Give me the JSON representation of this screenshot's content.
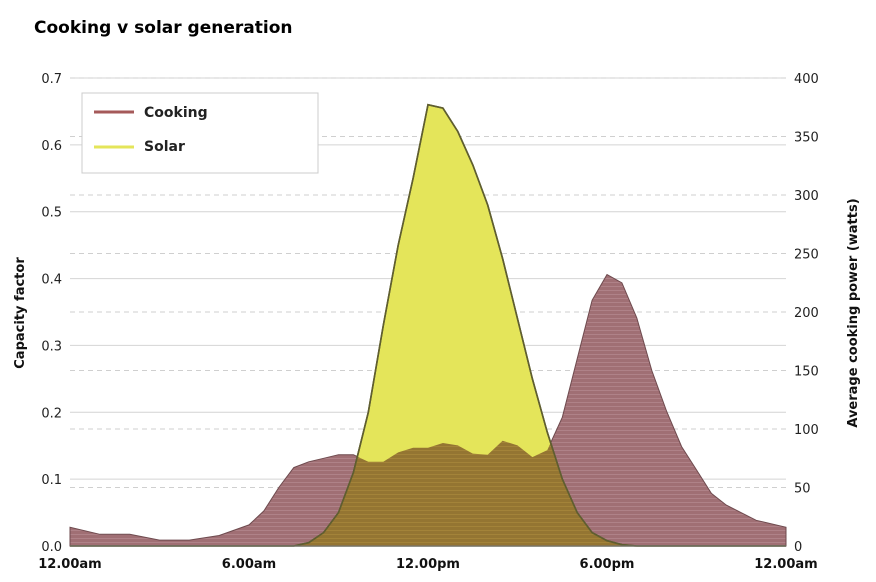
{
  "chart_data": {
    "type": "area",
    "title": "Cooking v solar generation",
    "x_tick_labels": [
      "12.00am",
      "6.00am",
      "12.00pm",
      "6.00pm",
      "12.00am"
    ],
    "x_hours": [
      0,
      6,
      12,
      18,
      24
    ],
    "y_left": {
      "label": "Capacity factor",
      "lim": [
        0,
        0.7
      ],
      "ticks": [
        "0.0",
        "0.1",
        "0.2",
        "0.3",
        "0.4",
        "0.5",
        "0.6",
        "0.7"
      ]
    },
    "y_right": {
      "label": "Average cooking power (watts)",
      "lim": [
        0,
        400
      ],
      "ticks": [
        "0",
        "50",
        "100",
        "150",
        "200",
        "250",
        "300",
        "350",
        "400"
      ]
    },
    "legend": [
      {
        "name": "Cooking",
        "color": "#a55a5a"
      },
      {
        "name": "Solar",
        "color": "#e4e55a"
      }
    ],
    "series": [
      {
        "name": "Cooking",
        "axis": "right",
        "color": "#9a6a70",
        "x": [
          0,
          1,
          2,
          3,
          4,
          5,
          6,
          6.5,
          7,
          7.5,
          8,
          8.5,
          9,
          9.5,
          10,
          10.5,
          11,
          11.5,
          12,
          12.5,
          13,
          13.5,
          14,
          14.5,
          15,
          15.5,
          16,
          16.5,
          17,
          17.5,
          18,
          18.5,
          19,
          19.5,
          20,
          20.5,
          21,
          21.5,
          22,
          23,
          24
        ],
        "values": [
          16,
          10,
          10,
          5,
          5,
          9,
          18,
          30,
          50,
          67,
          72,
          75,
          78,
          78,
          72,
          72,
          80,
          84,
          84,
          88,
          86,
          79,
          78,
          90,
          86,
          76,
          82,
          110,
          160,
          210,
          232,
          225,
          195,
          150,
          115,
          85,
          65,
          45,
          35,
          22,
          16
        ]
      },
      {
        "name": "Solar",
        "axis": "left",
        "color": "#e4e55a",
        "x": [
          0,
          7.5,
          8,
          8.5,
          9,
          9.5,
          10,
          10.5,
          11,
          11.5,
          12,
          12.5,
          13,
          13.5,
          14,
          14.5,
          15,
          15.5,
          16,
          16.5,
          17,
          17.5,
          18,
          18.5,
          19,
          24
        ],
        "values": [
          0,
          0,
          0.005,
          0.02,
          0.05,
          0.11,
          0.2,
          0.33,
          0.45,
          0.55,
          0.66,
          0.655,
          0.62,
          0.57,
          0.51,
          0.43,
          0.34,
          0.25,
          0.17,
          0.1,
          0.05,
          0.02,
          0.008,
          0.002,
          0,
          0
        ]
      }
    ],
    "grid": {
      "left_solid": true,
      "right_dashed": true
    }
  }
}
